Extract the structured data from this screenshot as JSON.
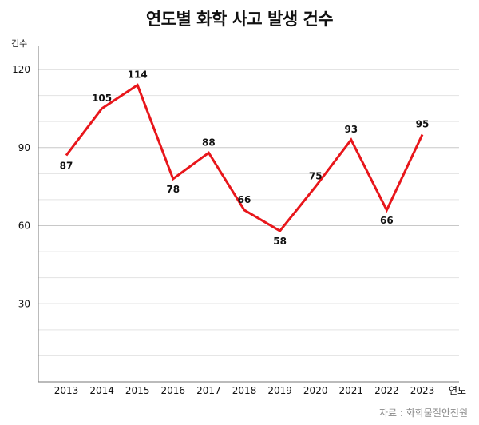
{
  "chart_data": {
    "type": "line",
    "title": "연도별 화학 사고 발생 건수",
    "ylabel": "건수",
    "xlabel": "연도",
    "categories": [
      "2013",
      "2014",
      "2015",
      "2016",
      "2017",
      "2018",
      "2019",
      "2020",
      "2021",
      "2022",
      "2023"
    ],
    "series": [
      {
        "values": [
          87,
          105,
          114,
          78,
          88,
          66,
          58,
          75,
          93,
          66,
          95
        ]
      }
    ],
    "ylim": [
      0,
      120
    ],
    "yticks": [
      30,
      60,
      90,
      120
    ],
    "grid": true,
    "line_color": "#e8161b",
    "source": "자료 : 화학물질안전원"
  }
}
